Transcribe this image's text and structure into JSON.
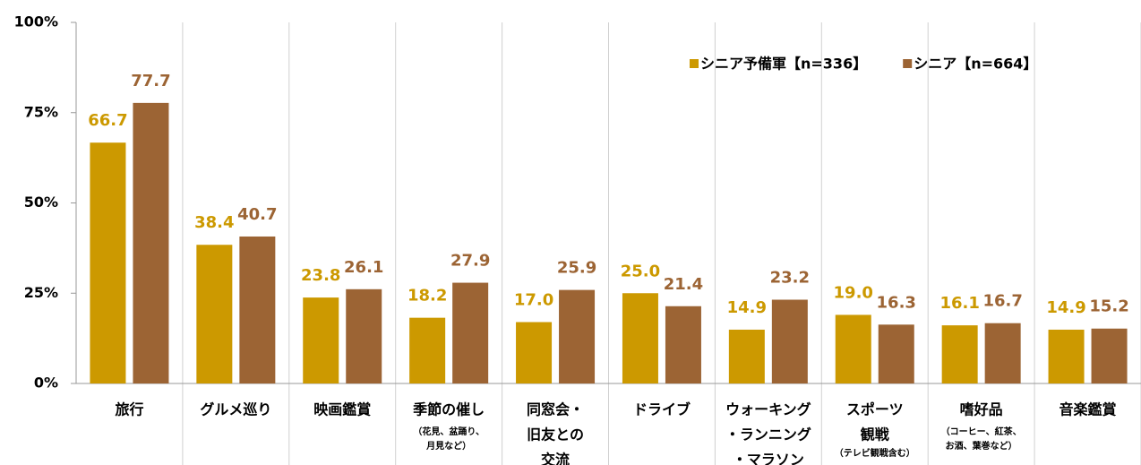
{
  "chart_data": {
    "type": "bar",
    "categories": [
      [
        "旅行"
      ],
      [
        "グルメ巡り"
      ],
      [
        "映画鑑賞"
      ],
      [
        "季節の催し"
      ],
      [
        "同窓会・",
        "旧友との",
        "交流"
      ],
      [
        "ドライブ"
      ],
      [
        "ウォーキング",
        "・ランニング",
        "・マラソン"
      ],
      [
        "スポーツ",
        "観戦"
      ],
      [
        "嗜好品"
      ],
      [
        "音楽鑑賞"
      ]
    ],
    "category_notes": [
      null,
      null,
      null,
      [
        "（花見、盆踊り、",
        "月見など）"
      ],
      null,
      null,
      null,
      [
        "（テレビ観戦含む）"
      ],
      [
        "（コーヒー、紅茶、",
        "お酒、葉巻など）"
      ],
      null
    ],
    "series": [
      {
        "name": "シニア予備軍【n=336】",
        "color": "#cc9900",
        "values": [
          66.7,
          38.4,
          23.8,
          18.2,
          17.0,
          25.0,
          14.9,
          19.0,
          16.1,
          14.9
        ],
        "value_labels": [
          "66.7",
          "38.4",
          "23.8",
          "18.2",
          "17.0",
          "25.0",
          "14.9",
          "19.0",
          "16.1",
          "14.9"
        ]
      },
      {
        "name": "シニア【n=664】",
        "color": "#9c6434",
        "values": [
          77.7,
          40.7,
          26.1,
          27.9,
          25.9,
          21.4,
          23.2,
          16.3,
          16.7,
          15.2
        ]
      }
    ],
    "ylim": [
      0,
      100
    ],
    "yticks": [
      {
        "value": 0,
        "label": "0%"
      },
      {
        "value": 25,
        "label": "25%"
      },
      {
        "value": 50,
        "label": "50%"
      },
      {
        "value": 75,
        "label": "75%"
      },
      {
        "value": 100,
        "label": "100%"
      }
    ],
    "legend": "top-right"
  }
}
